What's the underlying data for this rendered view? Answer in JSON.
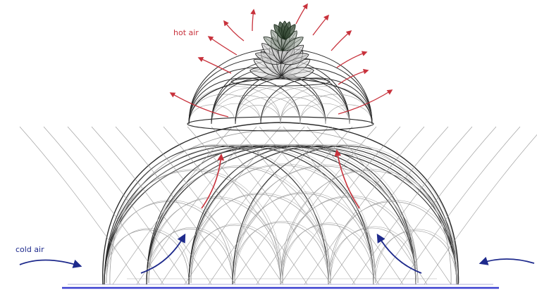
{
  "labels": {
    "hot_air": "hot air",
    "cold_air": "cold air"
  },
  "colors": {
    "hot": "#c8323c",
    "cold": "#1e2a8c",
    "structure": "#2b2b2b",
    "structure_light": "#9a9a9a",
    "ground": "#3a3fd0"
  },
  "icons": {
    "hot_arrow": "curved-arrow-up-right",
    "cold_arrow": "curved-arrow-inward"
  }
}
